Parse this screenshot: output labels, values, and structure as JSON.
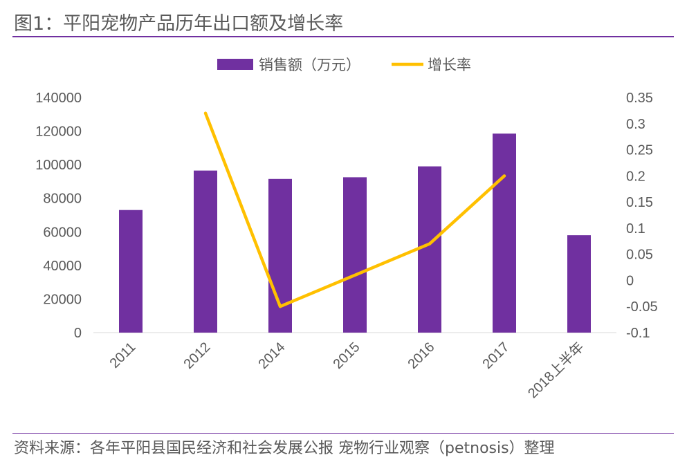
{
  "title": "图1：平阳宠物产品历年出口额及增长率",
  "source": "资料来源：各年平阳县国民经济和社会发展公报 宠物行业观察（petnosis）整理",
  "colors": {
    "bar": "#7030A0",
    "line": "#FFC000",
    "accent_rule": "#7030A0"
  },
  "chart_data": {
    "type": "bar+line",
    "categories": [
      "2011",
      "2012",
      "2014",
      "2015",
      "2016",
      "2017",
      "2018上半年"
    ],
    "series": [
      {
        "name": "销售额（万元）",
        "type": "bar",
        "axis": "left",
        "values": [
          73000,
          96500,
          91500,
          92500,
          99000,
          118500,
          58000
        ]
      },
      {
        "name": "增长率",
        "type": "line",
        "axis": "right",
        "values": [
          null,
          0.32,
          -0.05,
          0.01,
          0.07,
          0.2,
          null
        ]
      }
    ],
    "left_axis": {
      "ylim": [
        0,
        140000
      ],
      "ticks": [
        "0",
        "20000",
        "40000",
        "60000",
        "80000",
        "100000",
        "120000",
        "140000"
      ]
    },
    "right_axis": {
      "ylim": [
        -0.1,
        0.35
      ],
      "ticks": [
        "-0.1",
        "-0.05",
        "0",
        "0.05",
        "0.1",
        "0.15",
        "0.2",
        "0.25",
        "0.3",
        "0.35"
      ]
    },
    "legend": "top",
    "grid": false
  }
}
